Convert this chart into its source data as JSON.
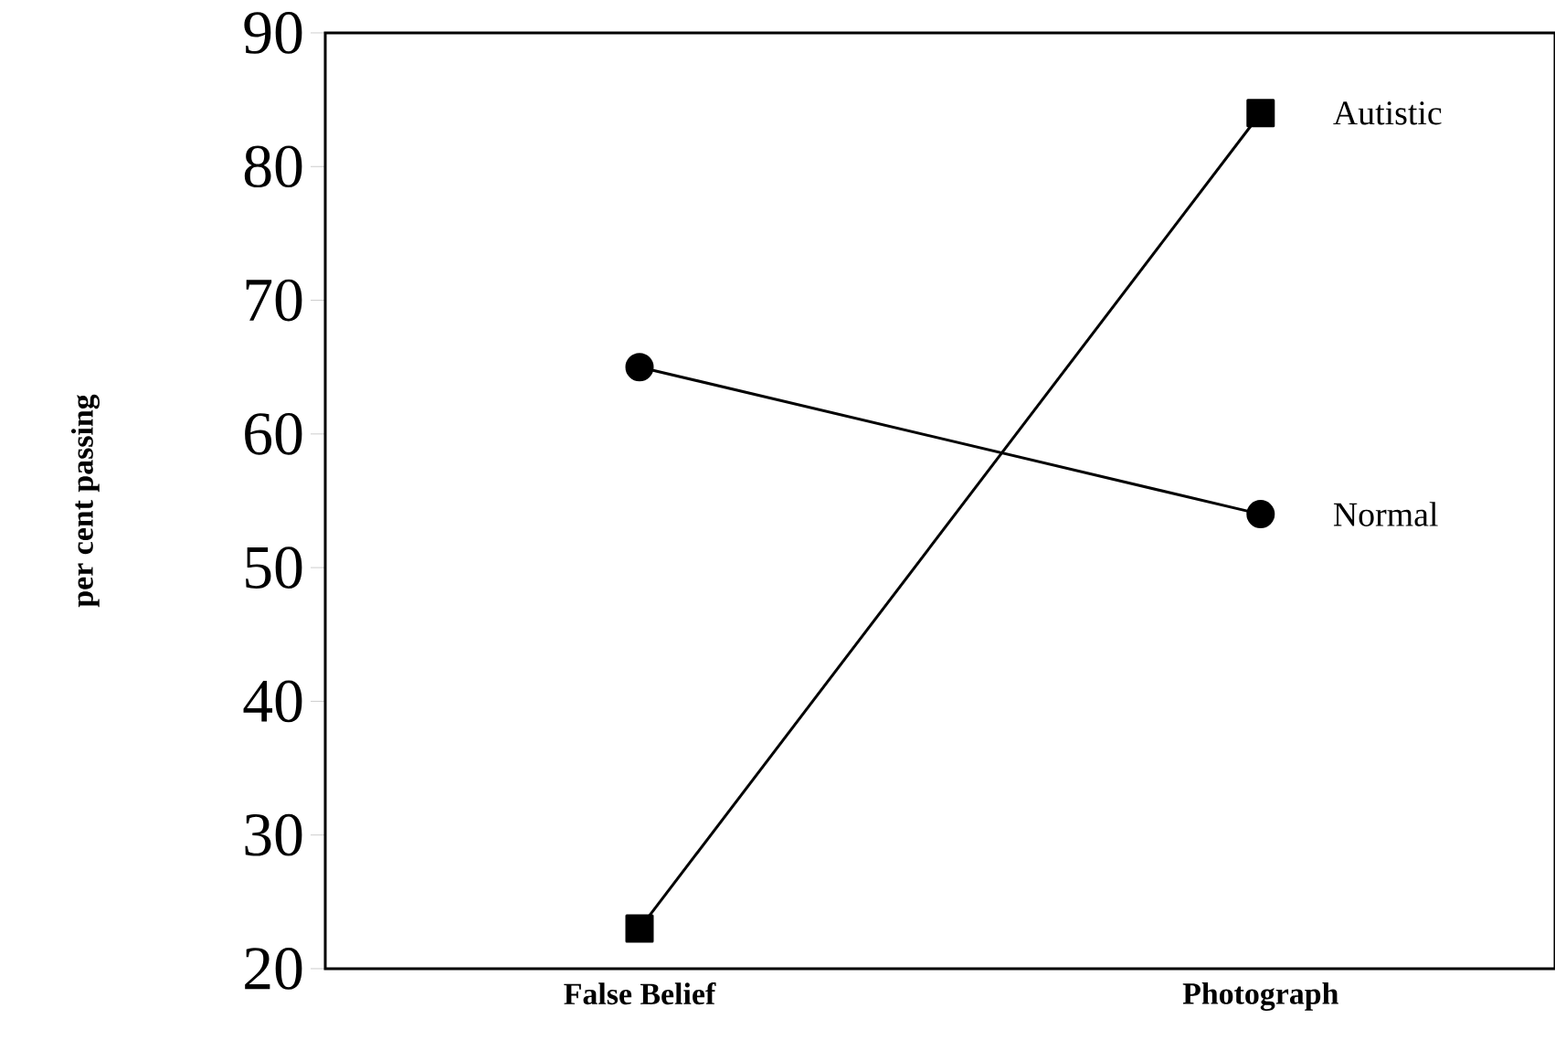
{
  "chart_data": {
    "type": "line",
    "ylabel": "per cent passing",
    "categories": [
      "False Belief",
      "Photograph"
    ],
    "ylim": [
      20,
      90
    ],
    "yticks": [
      20,
      30,
      40,
      50,
      60,
      70,
      80,
      90
    ],
    "series": [
      {
        "name": "Normal",
        "color": "#000000",
        "marker": "circle",
        "values": [
          65,
          54
        ]
      },
      {
        "name": "Autistic",
        "color": "#000000",
        "marker": "square",
        "values": [
          23,
          84
        ]
      }
    ]
  }
}
